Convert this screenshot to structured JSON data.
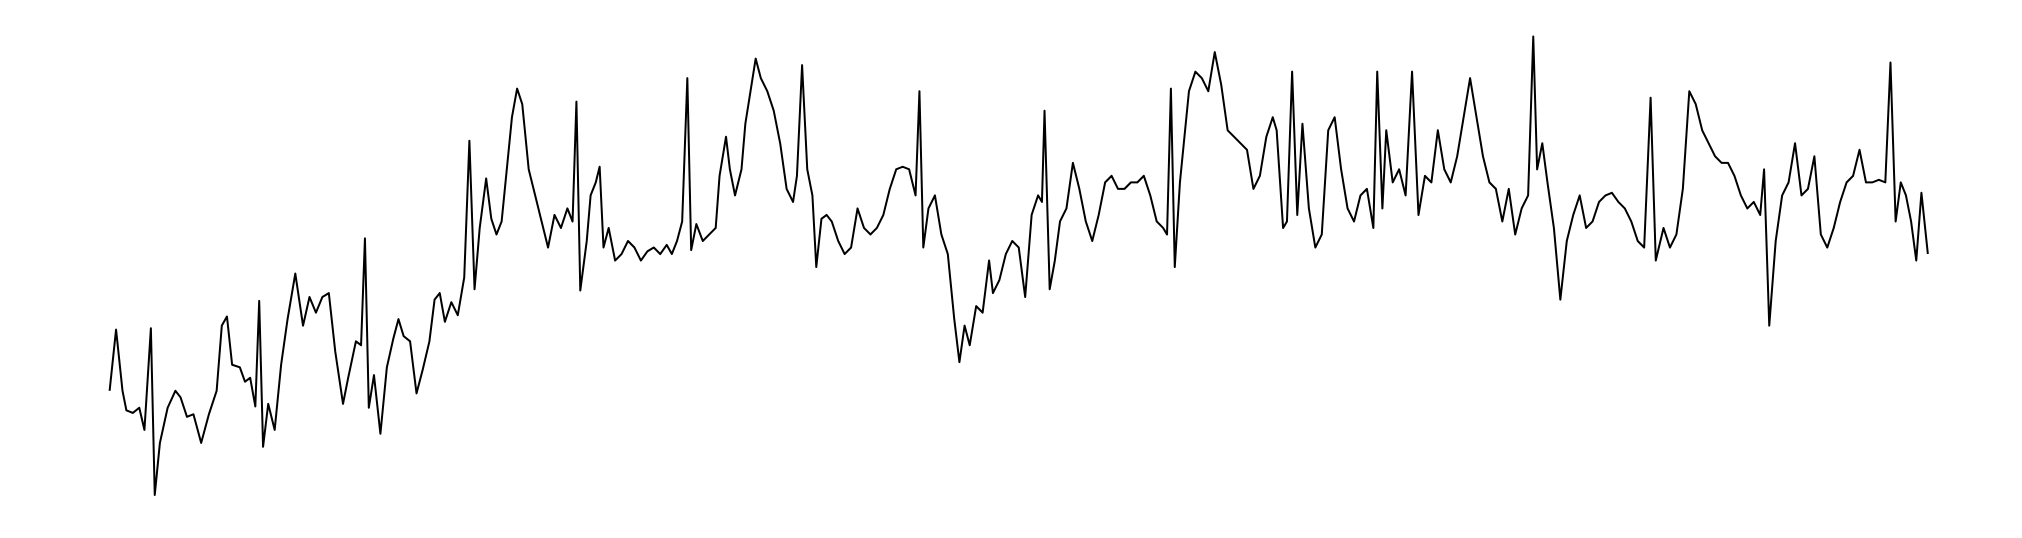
{
  "chart_data": {
    "type": "line",
    "color": "#000000",
    "xlim": [
      0,
      1568
    ],
    "ylim": [
      413,
      0
    ],
    "x": [
      85,
      90,
      95,
      98,
      103,
      108,
      112,
      117,
      120,
      124,
      130,
      136,
      140,
      145,
      150,
      156,
      162,
      168,
      172,
      176,
      180,
      186,
      190,
      194,
      198,
      201,
      204,
      208,
      213,
      218,
      223,
      229,
      235,
      240,
      245,
      250,
      255,
      260,
      266,
      270,
      276,
      280,
      283,
      286,
      290,
      295,
      300,
      305,
      309,
      313,
      318,
      323,
      328,
      333,
      337,
      341,
      345,
      350,
      355,
      360,
      364,
      368,
      372,
      377,
      381,
      385,
      389,
      393,
      397,
      401,
      405,
      410,
      415,
      420,
      425,
      430,
      435,
      440,
      444,
      447,
      450,
      455,
      458,
      462,
      465,
      468,
      472,
      477,
      482,
      487,
      492,
      497,
      502,
      507,
      512,
      517,
      521,
      525,
      529,
      533,
      536,
      540,
      545,
      550,
      555,
      558,
      563,
      566,
      570,
      575,
      578,
      582,
      586,
      590,
      595,
      600,
      605,
      610,
      615,
      618,
      622,
      626,
      630,
      633,
      637,
      641,
      645,
      650,
      655,
      660,
      665,
      670,
      675,
      680,
      685,
      690,
      695,
      700,
      705,
      710,
      713,
      716,
      720,
      725,
      730,
      735,
      740,
      744,
      748,
      752,
      757,
      762,
      767,
      770,
      775,
      780,
      785,
      790,
      795,
      800,
      805,
      808,
      810,
      814,
      818,
      822,
      827,
      832,
      837,
      842,
      847,
      852,
      857,
      862,
      867,
      872,
      877,
      882,
      887,
      892,
      897,
      902,
      905,
      908,
      911,
      915,
      918,
      922,
      927,
      932,
      937,
      942,
      947,
      952,
      957,
      962,
      967,
      972,
      977,
      982,
      987,
      990,
      995,
      998,
      1002,
      1006,
      1010,
      1015,
      1020,
      1025,
      1030,
      1035,
      1040,
      1045,
      1050,
      1055,
      1060,
      1065,
      1068,
      1072,
      1075,
      1080,
      1085,
      1090,
      1095,
      1100,
      1105,
      1110,
      1115,
      1120,
      1125,
      1130,
      1135,
      1140,
      1145,
      1150,
      1155,
      1160,
      1165,
      1170,
      1175,
      1180,
      1185,
      1189,
      1192,
      1196,
      1200,
      1205,
      1210,
      1215,
      1220,
      1225,
      1230,
      1235,
      1240,
      1245,
      1250,
      1255,
      1260,
      1265,
      1270,
      1275,
      1280,
      1284,
      1290,
      1295,
      1300,
      1305,
      1310,
      1315,
      1320,
      1325,
      1330,
      1335,
      1340,
      1345,
      1350,
      1355,
      1360,
      1365,
      1368,
      1372,
      1377,
      1382,
      1387,
      1392,
      1397,
      1402,
      1407,
      1412,
      1417,
      1422,
      1427,
      1432,
      1437,
      1442,
      1447,
      1452,
      1457,
      1462,
      1466,
      1470,
      1474,
      1478,
      1482,
      1486,
      1490,
      1495
    ],
    "values": [
      300,
      253,
      300,
      315,
      317,
      313,
      330,
      252,
      380,
      340,
      313,
      300,
      305,
      320,
      318,
      340,
      318,
      300,
      250,
      243,
      280,
      282,
      293,
      290,
      312,
      231,
      343,
      310,
      330,
      280,
      245,
      210,
      250,
      228,
      240,
      228,
      225,
      270,
      310,
      290,
      262,
      265,
      183,
      313,
      288,
      333,
      282,
      260,
      245,
      258,
      262,
      302,
      283,
      262,
      230,
      225,
      247,
      232,
      242,
      213,
      108,
      222,
      175,
      137,
      168,
      180,
      170,
      130,
      90,
      68,
      80,
      130,
      150,
      170,
      190,
      165,
      175,
      160,
      170,
      78,
      223,
      185,
      150,
      140,
      128,
      190,
      175,
      200,
      195,
      185,
      190,
      200,
      193,
      190,
      195,
      188,
      195,
      185,
      170,
      60,
      192,
      172,
      185,
      180,
      175,
      135,
      105,
      130,
      150,
      130,
      95,
      70,
      45,
      60,
      70,
      85,
      110,
      145,
      155,
      135,
      50,
      130,
      150,
      205,
      168,
      165,
      170,
      185,
      195,
      190,
      160,
      175,
      180,
      175,
      165,
      145,
      130,
      128,
      130,
      150,
      70,
      190,
      160,
      150,
      180,
      195,
      245,
      278,
      250,
      265,
      235,
      240,
      200,
      225,
      215,
      195,
      185,
      190,
      228,
      165,
      150,
      155,
      85,
      222,
      200,
      170,
      160,
      125,
      145,
      170,
      185,
      165,
      140,
      135,
      145,
      145,
      140,
      140,
      135,
      150,
      170,
      175,
      180,
      68,
      205,
      140,
      110,
      70,
      55,
      60,
      70,
      40,
      65,
      100,
      105,
      110,
      115,
      145,
      135,
      105,
      90,
      100,
      175,
      170,
      55,
      165,
      95,
      160,
      190,
      180,
      100,
      90,
      130,
      160,
      170,
      150,
      145,
      175,
      55,
      160,
      100,
      140,
      130,
      150,
      55,
      165,
      135,
      140,
      100,
      130,
      140,
      120,
      90,
      60,
      90,
      120,
      140,
      145,
      170,
      145,
      180,
      160,
      150,
      28,
      130,
      110,
      140,
      175,
      230,
      185,
      165,
      150,
      175,
      170,
      155,
      150,
      148,
      155,
      160,
      170,
      185,
      190,
      75,
      200,
      175,
      190,
      180,
      145,
      70,
      80,
      100,
      110,
      120,
      125,
      125,
      135,
      150,
      160,
      155,
      165,
      130,
      250,
      185,
      150,
      140,
      110,
      150,
      145,
      120,
      180,
      190,
      175,
      155,
      140,
      135,
      115,
      140,
      140,
      138,
      140,
      48,
      170,
      140,
      150,
      170,
      200,
      148,
      195
    ]
  }
}
